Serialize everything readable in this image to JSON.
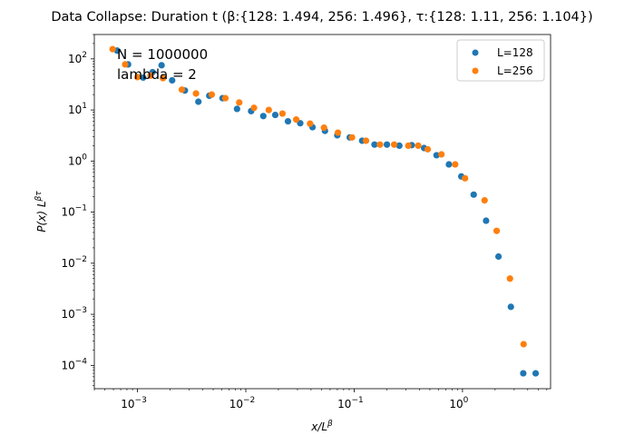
{
  "chart_data": {
    "type": "scatter",
    "title": "Data Collapse: Duration t  (β:{128: 1.494, 256: 1.496}, τ:{128: 1.11, 256: 1.104})",
    "xlabel": "x/L^β",
    "ylabel": "P(x) L^βτ",
    "xscale": "log",
    "yscale": "log",
    "xlim": [
      0.0004,
      6.5
    ],
    "ylim": [
      3.5e-05,
      300
    ],
    "x_ticks": [
      {
        "value": 0.001,
        "base": "10",
        "exp": "−3"
      },
      {
        "value": 0.01,
        "base": "10",
        "exp": "−2"
      },
      {
        "value": 0.1,
        "base": "10",
        "exp": "−1"
      },
      {
        "value": 1,
        "base": "10",
        "exp": "0"
      }
    ],
    "y_ticks": [
      {
        "value": 0.0001,
        "base": "10",
        "exp": "−4"
      },
      {
        "value": 0.001,
        "base": "10",
        "exp": "−3"
      },
      {
        "value": 0.01,
        "base": "10",
        "exp": "−2"
      },
      {
        "value": 0.1,
        "base": "10",
        "exp": "−1"
      },
      {
        "value": 1,
        "base": "10",
        "exp": "0"
      },
      {
        "value": 10,
        "base": "10",
        "exp": "1"
      },
      {
        "value": 100,
        "base": "10",
        "exp": "2"
      }
    ],
    "legend": {
      "placement": "top-right"
    },
    "annotations": [
      "N = 1000000",
      "lambda = 2"
    ],
    "grid": false,
    "series": [
      {
        "name": "L=128",
        "color": "#1f77b4",
        "x": [
          0.00065,
          0.00082,
          0.00113,
          0.00138,
          0.00167,
          0.00209,
          0.00274,
          0.00365,
          0.0046,
          0.0061,
          0.0083,
          0.0112,
          0.0145,
          0.0187,
          0.0245,
          0.0318,
          0.0413,
          0.0538,
          0.0699,
          0.0911,
          0.1185,
          0.1542,
          0.2007,
          0.2613,
          0.34,
          0.4422,
          0.576,
          0.7496,
          0.975,
          1.269,
          1.651,
          2.149,
          2.796,
          3.638,
          4.733
        ],
        "y": [
          145,
          78,
          43,
          55,
          75,
          38,
          24,
          14.5,
          19,
          17,
          10.5,
          9.5,
          7.6,
          8.0,
          6.0,
          5.5,
          4.6,
          3.9,
          3.2,
          2.9,
          2.5,
          2.1,
          2.1,
          2.0,
          2.05,
          1.8,
          1.3,
          0.86,
          0.5,
          0.22,
          0.068,
          0.0135,
          0.0014,
          7e-05,
          7e-05
        ]
      },
      {
        "name": "L=256",
        "color": "#ff7f0e",
        "x": [
          0.00059,
          0.00077,
          0.001,
          0.00132,
          0.00172,
          0.00257,
          0.00347,
          0.00485,
          0.00648,
          0.0087,
          0.0119,
          0.0163,
          0.0218,
          0.0292,
          0.0392,
          0.0527,
          0.0709,
          0.0955,
          0.1286,
          0.1732,
          0.234,
          0.3163,
          0.3903,
          0.4775,
          0.6394,
          0.8563,
          1.055,
          1.599,
          2.067,
          2.742,
          3.664
        ],
        "y": [
          155,
          78,
          44,
          47,
          42,
          25,
          21,
          20,
          17,
          14,
          11,
          10,
          8.5,
          6.5,
          5.4,
          4.5,
          3.6,
          2.9,
          2.5,
          2.1,
          2.1,
          2.0,
          2.0,
          1.7,
          1.35,
          0.86,
          0.46,
          0.17,
          0.043,
          0.005,
          0.00026
        ]
      }
    ]
  }
}
